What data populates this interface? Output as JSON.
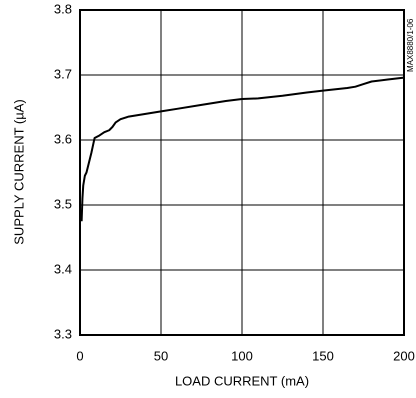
{
  "chart_data": {
    "type": "line",
    "xlabel": "LOAD CURRENT (mA)",
    "ylabel": "SUPPLY CURRENT (µA)",
    "annotation": "MAX8880/1-06",
    "x": [
      1,
      1.5,
      2,
      3,
      4,
      5,
      7,
      9,
      12,
      15,
      18,
      20,
      22,
      25,
      30,
      40,
      50,
      60,
      75,
      90,
      100,
      110,
      125,
      140,
      150,
      165,
      170,
      175,
      180,
      190,
      200
    ],
    "series": [
      {
        "color": "#000000",
        "values": [
          3.475,
          3.51,
          3.53,
          3.545,
          3.55,
          3.56,
          3.58,
          3.603,
          3.607,
          3.612,
          3.615,
          3.62,
          3.627,
          3.632,
          3.636,
          3.64,
          3.644,
          3.648,
          3.654,
          3.66,
          3.663,
          3.664,
          3.668,
          3.673,
          3.676,
          3.68,
          3.682,
          3.686,
          3.69,
          3.693,
          3.696
        ]
      }
    ],
    "xlim": [
      0,
      200
    ],
    "xticks": [
      0,
      50,
      100,
      150,
      200
    ],
    "ylim": [
      3.3,
      3.8
    ],
    "yticks": [
      3.3,
      3.4,
      3.5,
      3.6,
      3.7,
      3.8
    ],
    "grid": true
  }
}
